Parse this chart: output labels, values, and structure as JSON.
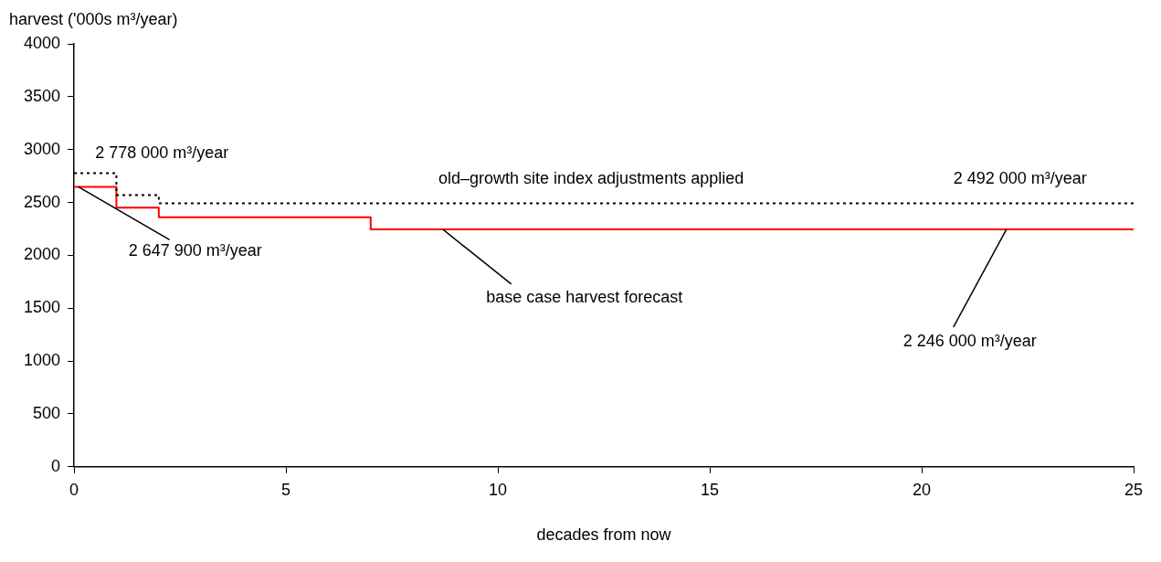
{
  "chart_data": {
    "type": "step",
    "ylabel": "harvest ('000s m³/year)",
    "xlabel": "decades from now",
    "xlim": [
      0,
      25
    ],
    "xticks": [
      0,
      5,
      10,
      15,
      20,
      25
    ],
    "ylim": [
      0,
      4000
    ],
    "yticks": [
      0,
      500,
      1000,
      1500,
      2000,
      2500,
      3000,
      3500,
      4000
    ],
    "grid": false,
    "legend": false,
    "marker": "none",
    "series": [
      {
        "name": "old–growth site index adjustments applied",
        "color": "#000000",
        "line_style": "dotted",
        "x": [
          0,
          1,
          2,
          25
        ],
        "values": [
          2778,
          2570,
          2492,
          2492
        ]
      },
      {
        "name": "base case harvest forecast",
        "color": "#ff0000",
        "line_style": "solid",
        "x": [
          0,
          1,
          2,
          7,
          25
        ],
        "values": [
          2647.9,
          2450,
          2360,
          2246,
          2246
        ]
      }
    ],
    "annotations": [
      {
        "text": "2 778 000 m³/year",
        "x": 0.5,
        "y": 2778
      },
      {
        "text": "2 492 000 m³/year",
        "x": 22,
        "y": 2492
      },
      {
        "text": "2 647 900 m³/year",
        "x": 0.1,
        "y": 2647.9
      },
      {
        "text": "2 246 000 m³/year",
        "x": 22,
        "y": 2246
      }
    ]
  }
}
